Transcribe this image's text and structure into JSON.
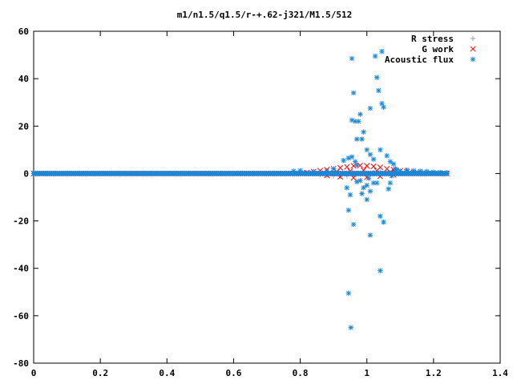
{
  "chart_data": {
    "type": "scatter",
    "title": "m1/n1.5/q1.5/r-+.62-j321/M1.5/512",
    "xlabel": "",
    "ylabel": "",
    "xlim": [
      0,
      1.4
    ],
    "ylim": [
      -80,
      60
    ],
    "x_ticks": [
      0,
      0.2,
      0.4,
      0.6,
      0.8,
      1,
      1.2,
      1.4
    ],
    "y_ticks": [
      -80,
      -60,
      -40,
      -20,
      0,
      20,
      40,
      60
    ],
    "x_tick_labels": [
      "0",
      "0.2",
      "0.4",
      "0.6",
      "0.8",
      "1",
      "1.2",
      "1.4"
    ],
    "y_tick_labels": [
      "-80",
      "-60",
      "-40",
      "-20",
      "0",
      "20",
      "40",
      "60"
    ],
    "grid": false,
    "legend_position": "top-right",
    "series": [
      {
        "name": "R stress",
        "marker": "plus",
        "color": "#a0a0a0",
        "dense_band": {
          "x_start": 0.0,
          "x_end": 1.24,
          "y": 0
        },
        "points": [
          [
            0.78,
            0.2
          ],
          [
            0.82,
            0.3
          ],
          [
            0.86,
            -0.4
          ],
          [
            0.88,
            -0.8
          ],
          [
            0.9,
            -1.0
          ],
          [
            0.92,
            -1.2
          ],
          [
            0.94,
            -1.0
          ],
          [
            0.96,
            -0.6
          ],
          [
            0.98,
            -0.3
          ],
          [
            1.0,
            0.2
          ],
          [
            1.02,
            0.5
          ],
          [
            1.04,
            0.6
          ],
          [
            1.06,
            0.3
          ],
          [
            1.08,
            0.1
          ],
          [
            1.1,
            0.0
          ]
        ]
      },
      {
        "name": "G work",
        "marker": "cross",
        "color": "#ff0000",
        "dense_band": {
          "x_start": 0.0,
          "x_end": 1.24,
          "y": 0
        },
        "points": [
          [
            0.82,
            0.4
          ],
          [
            0.84,
            0.8
          ],
          [
            0.86,
            1.2
          ],
          [
            0.88,
            1.6
          ],
          [
            0.9,
            2.0
          ],
          [
            0.92,
            2.4
          ],
          [
            0.94,
            2.8
          ],
          [
            0.96,
            3.2
          ],
          [
            0.98,
            3.4
          ],
          [
            1.0,
            3.2
          ],
          [
            1.02,
            3.0
          ],
          [
            1.04,
            2.6
          ],
          [
            1.06,
            2.0
          ],
          [
            1.08,
            1.6
          ],
          [
            1.1,
            1.2
          ],
          [
            1.12,
            0.8
          ],
          [
            1.14,
            0.5
          ],
          [
            1.16,
            0.3
          ],
          [
            1.18,
            0.1
          ],
          [
            0.88,
            -0.8
          ],
          [
            0.92,
            -1.4
          ],
          [
            0.96,
            -1.8
          ],
          [
            1.0,
            -1.6
          ],
          [
            1.04,
            -1.2
          ],
          [
            1.08,
            -0.6
          ],
          [
            0.95,
            1.0
          ],
          [
            0.99,
            1.4
          ],
          [
            1.03,
            1.2
          ],
          [
            0.91,
            0.8
          ],
          [
            1.07,
            0.6
          ]
        ]
      },
      {
        "name": "Acoustic flux",
        "marker": "star",
        "color": "#1a88d8",
        "dense_band": {
          "x_start": 0.0,
          "x_end": 1.24,
          "y": 0
        },
        "points": [
          [
            0.78,
            1.0
          ],
          [
            0.8,
            1.2
          ],
          [
            0.84,
            0.8
          ],
          [
            0.88,
            1.0
          ],
          [
            0.9,
            2.0
          ],
          [
            0.955,
            48.5
          ],
          [
            0.96,
            34.0
          ],
          [
            0.965,
            22.0
          ],
          [
            0.97,
            14.5
          ],
          [
            0.975,
            22.0
          ],
          [
            0.98,
            25.0
          ],
          [
            0.985,
            14.5
          ],
          [
            0.99,
            17.5
          ],
          [
            0.955,
            22.5
          ],
          [
            0.93,
            5.5
          ],
          [
            0.945,
            6.5
          ],
          [
            0.955,
            7.0
          ],
          [
            0.965,
            5.0
          ],
          [
            0.97,
            3.5
          ],
          [
            1.0,
            10.0
          ],
          [
            1.01,
            8.0
          ],
          [
            1.02,
            6.0
          ],
          [
            1.04,
            10.0
          ],
          [
            1.06,
            7.5
          ],
          [
            1.07,
            5.0
          ],
          [
            1.08,
            4.0
          ],
          [
            1.085,
            2.0
          ],
          [
            1.09,
            1.5
          ],
          [
            1.01,
            27.5
          ],
          [
            1.025,
            49.5
          ],
          [
            1.03,
            40.5
          ],
          [
            1.035,
            35.0
          ],
          [
            1.045,
            29.5
          ],
          [
            1.05,
            28.0
          ],
          [
            1.045,
            51.5
          ],
          [
            0.94,
            -6.0
          ],
          [
            0.95,
            -9.0
          ],
          [
            0.96,
            -21.5
          ],
          [
            0.945,
            -15.5
          ],
          [
            0.97,
            -3.5
          ],
          [
            0.98,
            -3.0
          ],
          [
            0.99,
            -6.0
          ],
          [
            1.0,
            -5.0
          ],
          [
            1.01,
            -7.5
          ],
          [
            1.02,
            -4.0
          ],
          [
            1.03,
            -4.0
          ],
          [
            1.04,
            -18.0
          ],
          [
            1.05,
            -20.5
          ],
          [
            1.065,
            -6.5
          ],
          [
            1.07,
            -4.0
          ],
          [
            1.075,
            -1.0
          ],
          [
            1.0,
            -11.0
          ],
          [
            1.005,
            -2.0
          ],
          [
            0.985,
            -8.5
          ],
          [
            1.01,
            -26.0
          ],
          [
            1.04,
            -41.0
          ],
          [
            0.945,
            -50.5
          ],
          [
            0.952,
            -65.0
          ],
          [
            1.1,
            1.0
          ],
          [
            1.12,
            1.5
          ],
          [
            1.14,
            1.2
          ],
          [
            1.16,
            1.0
          ],
          [
            1.18,
            0.8
          ],
          [
            1.2,
            0.6
          ],
          [
            1.22,
            0.5
          ],
          [
            1.24,
            0.4
          ]
        ]
      }
    ]
  }
}
